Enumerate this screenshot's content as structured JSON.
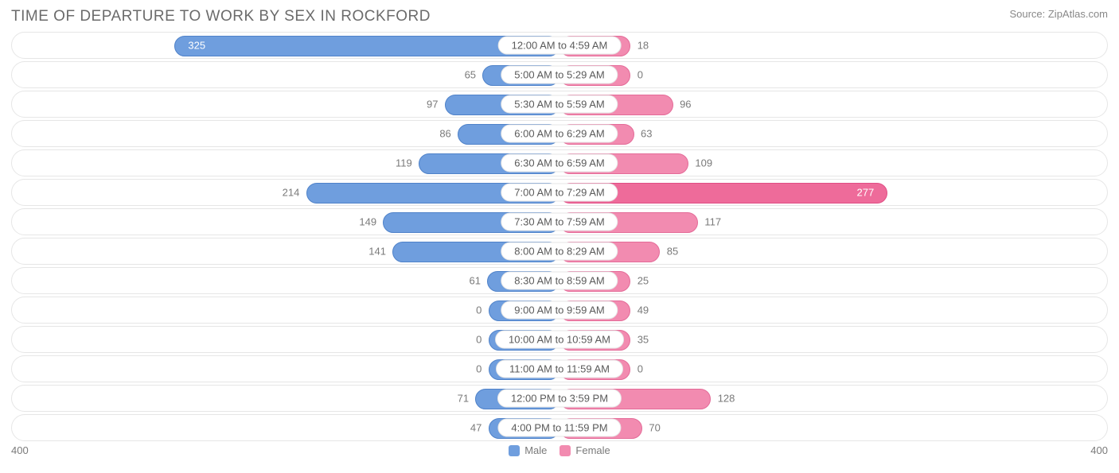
{
  "title": "TIME OF DEPARTURE TO WORK BY SEX IN ROCKFORD",
  "source": "Source: ZipAtlas.com",
  "axis": {
    "min": 0,
    "max": 400,
    "left_label": "400",
    "right_label": "400"
  },
  "colors": {
    "male_fill": "#6f9ede",
    "male_border": "#4f82c9",
    "female_fill": "#f28bb0",
    "female_border": "#e46b98",
    "highlight_female_fill": "#ee6b9a",
    "highlight_female_border": "#e04e85",
    "track_border": "#e6e6e6",
    "background": "#ffffff",
    "text": "#6b6b6b",
    "value_text": "#7a7a7a"
  },
  "legend": {
    "male": "Male",
    "female": "Female"
  },
  "label_width_pct": 13.5,
  "min_bar_pct": 6.5,
  "center_buffer": 0.0,
  "rows": [
    {
      "label": "12:00 AM to 4:59 AM",
      "male": 325,
      "female": 18,
      "male_inside": true,
      "female_inside": false
    },
    {
      "label": "5:00 AM to 5:29 AM",
      "male": 65,
      "female": 0,
      "male_inside": false,
      "female_inside": false
    },
    {
      "label": "5:30 AM to 5:59 AM",
      "male": 97,
      "female": 96,
      "male_inside": false,
      "female_inside": false
    },
    {
      "label": "6:00 AM to 6:29 AM",
      "male": 86,
      "female": 63,
      "male_inside": false,
      "female_inside": false
    },
    {
      "label": "6:30 AM to 6:59 AM",
      "male": 119,
      "female": 109,
      "male_inside": false,
      "female_inside": false
    },
    {
      "label": "7:00 AM to 7:29 AM",
      "male": 214,
      "female": 277,
      "male_inside": false,
      "female_inside": true,
      "female_highlight": true
    },
    {
      "label": "7:30 AM to 7:59 AM",
      "male": 149,
      "female": 117,
      "male_inside": false,
      "female_inside": false
    },
    {
      "label": "8:00 AM to 8:29 AM",
      "male": 141,
      "female": 85,
      "male_inside": false,
      "female_inside": false
    },
    {
      "label": "8:30 AM to 8:59 AM",
      "male": 61,
      "female": 25,
      "male_inside": false,
      "female_inside": false
    },
    {
      "label": "9:00 AM to 9:59 AM",
      "male": 0,
      "female": 49,
      "male_inside": false,
      "female_inside": false
    },
    {
      "label": "10:00 AM to 10:59 AM",
      "male": 0,
      "female": 35,
      "male_inside": false,
      "female_inside": false
    },
    {
      "label": "11:00 AM to 11:59 AM",
      "male": 0,
      "female": 0,
      "male_inside": false,
      "female_inside": false
    },
    {
      "label": "12:00 PM to 3:59 PM",
      "male": 71,
      "female": 128,
      "male_inside": false,
      "female_inside": false
    },
    {
      "label": "4:00 PM to 11:59 PM",
      "male": 47,
      "female": 70,
      "male_inside": false,
      "female_inside": false
    }
  ]
}
